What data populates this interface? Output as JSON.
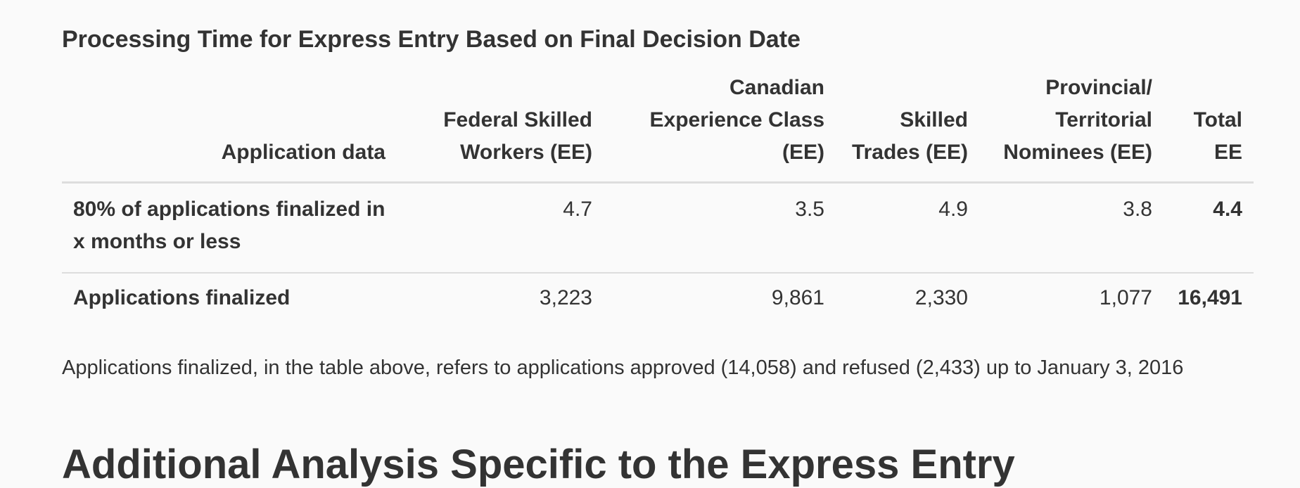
{
  "table": {
    "caption": "Processing Time for Express Entry Based on Final Decision Date",
    "headers": [
      "Application data",
      "Federal Skilled Workers (EE)",
      "Canadian Experience Class (EE)",
      "Skilled Trades (EE)",
      "Provincial/ Territorial Nominees (EE)",
      "Total EE"
    ],
    "rows": [
      {
        "label": "80% of applications finalized in x months or less",
        "values": [
          "4.7",
          "3.5",
          "4.9",
          "3.8",
          "4.4"
        ]
      },
      {
        "label": "Applications finalized",
        "values": [
          "3,223",
          "9,861",
          "2,330",
          "1,077",
          "16,491"
        ]
      }
    ]
  },
  "note": "Applications finalized, in the table above, refers to applications approved (14,058) and refused (2,433) up to January 3, 2016",
  "next_heading": "Additional Analysis Specific to the Express Entry"
}
